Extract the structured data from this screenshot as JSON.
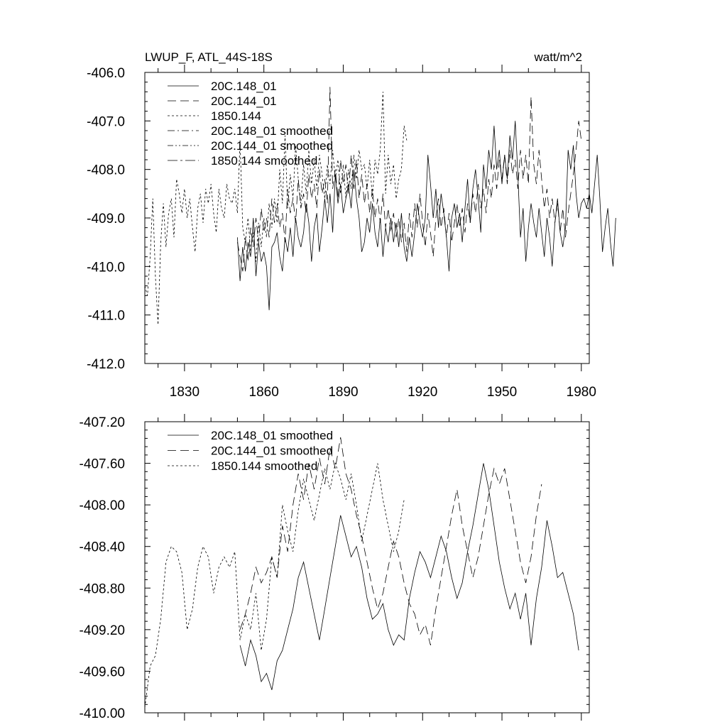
{
  "chart_data": [
    {
      "type": "line",
      "panel": "top",
      "title": "LWUP_F, ATL_44S-18S",
      "units": "watt/m^2",
      "xlabel": "",
      "ylabel": "",
      "xlim": [
        1815,
        1983
      ],
      "ylim": [
        -412.0,
        -406.0
      ],
      "xticks": [
        1830,
        1860,
        1890,
        1920,
        1950,
        1980
      ],
      "xtick_labels": [
        "1830",
        "1860",
        "1890",
        "1920",
        "1950",
        "1980"
      ],
      "yticks": [
        -406.0,
        -407.0,
        -408.0,
        -409.0,
        -410.0,
        -411.0,
        -412.0
      ],
      "ytick_labels": [
        "-406.0",
        "-407.0",
        "-408.0",
        "-409.0",
        "-410.0",
        "-411.0",
        "-412.0"
      ],
      "legend_position": "top-left",
      "series": [
        {
          "name": "20C.148_01",
          "dash": "solid",
          "x_start": 1850,
          "values": [
            -409.4,
            -410.3,
            -409.6,
            -410.1,
            -409.5,
            -409.8,
            -409.0,
            -410.2,
            -409.5,
            -409.9,
            -409.7,
            -410.0,
            -410.9,
            -409.6,
            -409.5,
            -409.3,
            -409.8,
            -410.1,
            -409.4,
            -409.7,
            -409.2,
            -409.8,
            -409.0,
            -409.4,
            -409.6,
            -409.3,
            -408.7,
            -409.1,
            -409.9,
            -409.2,
            -408.9,
            -409.7,
            -409.2,
            -408.6,
            -409.1,
            -408.5,
            -409.3,
            -408.1,
            -408.7,
            -408.3,
            -408.9,
            -408.6,
            -408.3,
            -408.8,
            -408.0,
            -408.6,
            -409.0,
            -409.7,
            -409.5,
            -409.0,
            -409.3,
            -408.7,
            -409.3,
            -409.6,
            -409.0,
            -409.8,
            -409.2,
            -409.5,
            -409.0,
            -409.5,
            -409.1,
            -409.6,
            -408.9,
            -409.6,
            -409.9,
            -409.4,
            -409.8,
            -409.3,
            -408.7,
            -409.1,
            -409.4,
            -409.0,
            -407.7,
            -408.3,
            -409.0,
            -408.4,
            -409.2,
            -408.5,
            -408.9,
            -409.4,
            -410.1,
            -409.0,
            -408.7,
            -409.2,
            -408.9,
            -409.5,
            -408.8,
            -408.2,
            -409.1,
            -408.4,
            -408.0,
            -408.6,
            -409.3,
            -407.9,
            -408.4,
            -407.6,
            -408.0,
            -407.1,
            -408.0,
            -407.6,
            -408.3,
            -407.7,
            -408.2,
            -407.3,
            -407.8,
            -407.0,
            -408.1,
            -409.4,
            -408.8,
            -409.9,
            -409.2,
            -408.7,
            -409.1,
            -409.4,
            -408.8,
            -409.3,
            -409.8,
            -409.0,
            -409.4,
            -410.0,
            -409.1,
            -408.6,
            -409.3,
            -409.6,
            -409.2,
            -407.6,
            -408.0,
            -407.5,
            -408.5,
            -409.0,
            -408.7,
            -408.6,
            -408.8,
            -408.5,
            -408.9,
            -408.3,
            -407.7,
            -408.6,
            -409.7,
            -409.2,
            -408.8,
            -409.5,
            -410.0,
            -409.0
          ]
        },
        {
          "name": "20C.144_01",
          "dash": "long-dash",
          "x_start": 1850,
          "values": [
            -409.5,
            -409.8,
            -410.1,
            -409.4,
            -409.9,
            -409.2,
            -409.6,
            -409.0,
            -409.5,
            -408.8,
            -409.3,
            -409.0,
            -409.4,
            -408.6,
            -409.1,
            -408.7,
            -409.2,
            -408.9,
            -409.5,
            -408.4,
            -408.9,
            -408.6,
            -409.1,
            -408.2,
            -408.8,
            -408.5,
            -408.9,
            -408.1,
            -408.6,
            -408.3,
            -408.8,
            -408.0,
            -408.5,
            -408.2,
            -408.7,
            -406.3,
            -408.4,
            -408.0,
            -408.6,
            -407.8,
            -408.3,
            -407.9,
            -408.5,
            -407.7,
            -408.4,
            -407.8,
            -408.6,
            -408.1,
            -408.7,
            -408.3,
            -408.9,
            -408.4,
            -409.0,
            -408.6,
            -409.1,
            -408.5,
            -409.2,
            -408.8,
            -409.3,
            -408.9,
            -409.4,
            -409.0,
            -409.5,
            -409.1,
            -409.7,
            -408.9,
            -409.4,
            -408.7,
            -409.2,
            -408.5,
            -409.1,
            -409.6,
            -408.9,
            -409.3,
            -409.8,
            -409.0,
            -408.6,
            -409.2,
            -408.8,
            -409.4,
            -408.9,
            -409.5,
            -409.1,
            -408.7,
            -409.2,
            -408.8,
            -409.3,
            -408.7,
            -409.1,
            -408.5,
            -408.9,
            -408.3,
            -408.8,
            -408.4,
            -408.9,
            -408.2,
            -408.6,
            -407.9,
            -408.4,
            -407.8,
            -408.2,
            -407.7,
            -408.3,
            -407.6,
            -408.1,
            -407.8,
            -408.4,
            -407.6,
            -408.2,
            -407.7,
            -408.3,
            -406.5,
            -407.9,
            -408.3,
            -407.6,
            -408.2,
            -408.8,
            -408.4,
            -409.0,
            -408.6,
            -409.1,
            -408.7,
            -409.3,
            -408.8,
            -409.4,
            -408.9,
            -408.5,
            -408.1,
            -407.6,
            -407.0,
            -407.4
          ]
        },
        {
          "name": "1850.144",
          "dash": "short-dash",
          "x_start": 1815,
          "values": [
            -410.4,
            -410.6,
            -409.8,
            -408.6,
            -410.2,
            -411.2,
            -409.5,
            -408.7,
            -409.6,
            -408.9,
            -408.6,
            -409.4,
            -408.2,
            -408.5,
            -408.9,
            -408.4,
            -409.0,
            -408.6,
            -409.2,
            -409.7,
            -408.8,
            -408.5,
            -409.1,
            -408.4,
            -408.7,
            -408.3,
            -408.9,
            -409.3,
            -408.4,
            -408.8,
            -409.0,
            -408.3,
            -408.6,
            -408.7,
            -408.4,
            -408.9,
            -407.4,
            -409.2,
            -409.5,
            -409.0,
            -409.7,
            -409.3,
            -409.9,
            -409.1,
            -409.6,
            -409.0,
            -409.4,
            -408.7,
            -409.2,
            -408.6,
            -409.1,
            -408.0,
            -408.7,
            -407.3,
            -408.8,
            -408.1,
            -408.6,
            -407.5,
            -408.2,
            -408.7,
            -407.9,
            -408.5,
            -407.6,
            -408.3,
            -407.8,
            -408.4,
            -407.7,
            -408.1,
            -408.6,
            -407.9,
            -408.3,
            -407.6,
            -408.2,
            -407.8,
            -408.5,
            -407.9,
            -408.6,
            -408.0,
            -408.4,
            -407.7,
            -408.2,
            -407.6,
            -408.0,
            -407.9,
            -408.4,
            -407.8,
            -408.6,
            -407.8,
            -408.1,
            -407.6,
            -406.4,
            -408.5,
            -407.7,
            -408.3,
            -407.9,
            -408.6,
            -408.2,
            -408.0,
            -407.1,
            -407.4
          ]
        },
        {
          "name": "20C.148_01 smoothed",
          "dash": "dash-dot",
          "legend_only": true,
          "values": []
        },
        {
          "name": "20C.144_01 smoothed",
          "dash": "dash-dot-dot",
          "legend_only": true,
          "values": []
        },
        {
          "name": "1850.144 smoothed",
          "dash": "long-dash-dot",
          "legend_only": true,
          "values": []
        }
      ]
    },
    {
      "type": "line",
      "panel": "bottom",
      "title": "",
      "xlabel": "",
      "ylabel": "",
      "xlim": [
        1815,
        1983
      ],
      "ylim": [
        -410.0,
        -407.2
      ],
      "xticks": [
        1830,
        1860,
        1890,
        1920,
        1950,
        1980
      ],
      "yticks": [
        -407.2,
        -407.6,
        -408.0,
        -408.4,
        -408.8,
        -409.2,
        -409.6,
        -410.0
      ],
      "ytick_labels": [
        "-407.20",
        "-407.60",
        "-408.00",
        "-408.40",
        "-408.80",
        "-409.20",
        "-409.60",
        "-410.00"
      ],
      "legend_position": "top-left",
      "series": [
        {
          "name": "20C.148_01 smoothed",
          "dash": "solid",
          "x": [
            1851,
            1853,
            1855,
            1857,
            1859,
            1861,
            1863,
            1865,
            1867,
            1869,
            1871,
            1873,
            1875,
            1877,
            1879,
            1881,
            1883,
            1885,
            1887,
            1889,
            1891,
            1893,
            1895,
            1897,
            1899,
            1901,
            1903,
            1905,
            1907,
            1909,
            1911,
            1913,
            1915,
            1917,
            1919,
            1921,
            1923,
            1925,
            1927,
            1929,
            1931,
            1933,
            1935,
            1937,
            1939,
            1941,
            1943,
            1945,
            1947,
            1949,
            1951,
            1953,
            1955,
            1957,
            1959,
            1961,
            1963,
            1965,
            1967,
            1969,
            1971,
            1973,
            1975,
            1977,
            1979
          ],
          "y": [
            -409.35,
            -409.55,
            -409.3,
            -409.45,
            -409.7,
            -409.62,
            -409.78,
            -409.5,
            -409.4,
            -409.2,
            -409.0,
            -408.7,
            -408.55,
            -408.8,
            -409.05,
            -409.3,
            -409.0,
            -408.7,
            -408.4,
            -408.1,
            -408.3,
            -408.5,
            -408.4,
            -408.6,
            -408.9,
            -409.1,
            -409.05,
            -408.95,
            -409.2,
            -409.35,
            -409.25,
            -409.3,
            -408.9,
            -408.65,
            -408.45,
            -408.55,
            -408.7,
            -408.5,
            -408.3,
            -408.45,
            -408.7,
            -408.9,
            -408.75,
            -408.45,
            -408.2,
            -407.9,
            -407.6,
            -407.85,
            -408.2,
            -408.55,
            -408.8,
            -409.0,
            -408.85,
            -409.1,
            -408.85,
            -409.35,
            -408.9,
            -408.6,
            -408.15,
            -408.4,
            -408.7,
            -408.65,
            -408.85,
            -409.05,
            -409.4
          ]
        },
        {
          "name": "20C.144_01 smoothed",
          "dash": "long-dash",
          "x": [
            1851,
            1853,
            1855,
            1857,
            1859,
            1861,
            1863,
            1865,
            1867,
            1869,
            1871,
            1873,
            1875,
            1877,
            1879,
            1881,
            1883,
            1885,
            1887,
            1889,
            1891,
            1893,
            1895,
            1897,
            1899,
            1901,
            1903,
            1905,
            1907,
            1909,
            1911,
            1913,
            1915,
            1917,
            1919,
            1921,
            1923,
            1925,
            1927,
            1929,
            1931,
            1933,
            1935,
            1937,
            1939,
            1941,
            1943,
            1945,
            1947,
            1949,
            1951,
            1953,
            1955,
            1957,
            1959,
            1961,
            1963,
            1965
          ],
          "y": [
            -409.2,
            -409.05,
            -408.85,
            -408.6,
            -408.75,
            -408.65,
            -408.5,
            -408.7,
            -408.2,
            -408.45,
            -408.0,
            -407.7,
            -407.95,
            -407.6,
            -407.85,
            -407.55,
            -407.8,
            -407.45,
            -407.65,
            -407.35,
            -407.7,
            -407.85,
            -408.1,
            -408.3,
            -408.55,
            -408.8,
            -409.0,
            -408.85,
            -408.6,
            -408.35,
            -408.5,
            -408.75,
            -408.95,
            -409.05,
            -409.25,
            -409.15,
            -409.35,
            -409.0,
            -408.7,
            -408.4,
            -408.1,
            -407.85,
            -408.2,
            -408.45,
            -408.7,
            -408.5,
            -408.2,
            -407.9,
            -407.65,
            -407.8,
            -407.65,
            -407.95,
            -408.25,
            -408.55,
            -408.75,
            -408.5,
            -408.1,
            -407.8
          ]
        },
        {
          "name": "1850.144 smoothed",
          "dash": "short-dash",
          "x": [
            1815,
            1817,
            1819,
            1821,
            1823,
            1825,
            1827,
            1829,
            1831,
            1833,
            1835,
            1837,
            1839,
            1841,
            1843,
            1845,
            1847,
            1849,
            1851,
            1853,
            1855,
            1857,
            1859,
            1861,
            1863,
            1865,
            1867,
            1869,
            1871,
            1873,
            1875,
            1877,
            1879,
            1881,
            1883,
            1885,
            1887,
            1889,
            1891,
            1893,
            1895,
            1897,
            1899,
            1901,
            1903,
            1905,
            1907,
            1909,
            1911,
            1913
          ],
          "y": [
            -409.95,
            -409.55,
            -409.45,
            -409.1,
            -408.55,
            -408.4,
            -408.45,
            -408.65,
            -409.2,
            -409.0,
            -408.6,
            -408.4,
            -408.5,
            -408.85,
            -408.6,
            -408.5,
            -408.6,
            -408.45,
            -409.3,
            -409.05,
            -409.2,
            -408.85,
            -409.4,
            -409.1,
            -408.5,
            -408.7,
            -408.0,
            -408.25,
            -408.45,
            -408.05,
            -407.75,
            -407.95,
            -408.15,
            -407.9,
            -407.65,
            -407.85,
            -407.6,
            -407.75,
            -407.95,
            -407.7,
            -408.0,
            -408.35,
            -408.1,
            -407.85,
            -407.6,
            -407.95,
            -408.2,
            -408.45,
            -408.25,
            -407.95
          ]
        }
      ]
    }
  ]
}
